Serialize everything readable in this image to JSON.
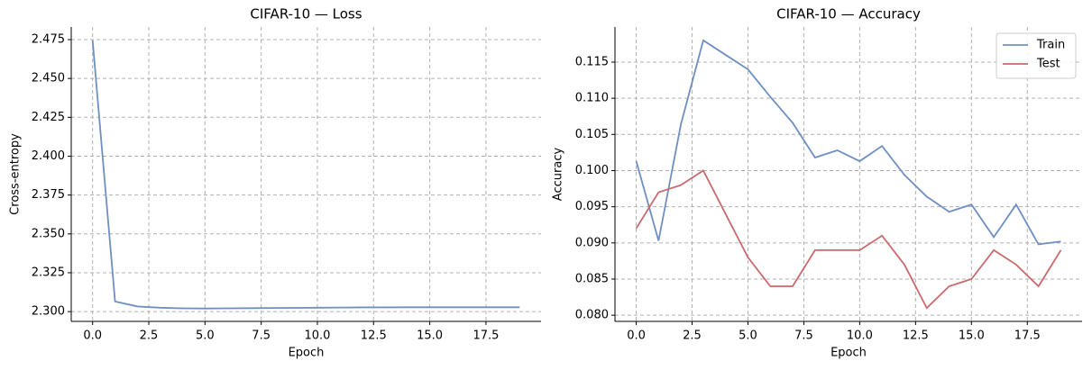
{
  "chart_data": [
    {
      "type": "line",
      "title": "CIFAR-10 — Loss",
      "x_label": "Epoch",
      "y_label": "Cross-entropy",
      "x": [
        0,
        1,
        2,
        3,
        4,
        5,
        6,
        7,
        8,
        9,
        10,
        11,
        12,
        13,
        14,
        15,
        16,
        17,
        18,
        19
      ],
      "values": [
        2.4745,
        2.3065,
        2.3033,
        2.3025,
        2.3021,
        2.302,
        2.3021,
        2.3022,
        2.3023,
        2.3024,
        2.3025,
        2.3026,
        2.3027,
        2.3027,
        2.3028,
        2.3028,
        2.3028,
        2.3028,
        2.3028,
        2.3028
      ],
      "color": "#6f8fc2",
      "xlim": [
        -0.95,
        19.95
      ],
      "xticks": [
        {
          "value": 0,
          "label": "0.0"
        },
        {
          "value": 2.5,
          "label": "2.5"
        },
        {
          "value": 5,
          "label": "5.0"
        },
        {
          "value": 7.5,
          "label": "7.5"
        },
        {
          "value": 10,
          "label": "10.0"
        },
        {
          "value": 12.5,
          "label": "12.5"
        },
        {
          "value": 15,
          "label": "15.0"
        },
        {
          "value": 17.5,
          "label": "17.5"
        }
      ],
      "ylim": [
        2.2937,
        2.4831
      ],
      "yticks": [
        {
          "value": 2.3,
          "label": "2.300"
        },
        {
          "value": 2.325,
          "label": "2.325"
        },
        {
          "value": 2.35,
          "label": "2.350"
        },
        {
          "value": 2.375,
          "label": "2.375"
        },
        {
          "value": 2.4,
          "label": "2.400"
        },
        {
          "value": 2.425,
          "label": "2.425"
        },
        {
          "value": 2.45,
          "label": "2.450"
        },
        {
          "value": 2.475,
          "label": "2.475"
        }
      ],
      "grid": true
    },
    {
      "type": "line",
      "title": "CIFAR-10 — Accuracy",
      "x_label": "Epoch",
      "y_label": "Accuracy",
      "x": [
        0,
        1,
        2,
        3,
        4,
        5,
        6,
        7,
        8,
        9,
        10,
        11,
        12,
        13,
        14,
        15,
        16,
        17,
        18,
        19
      ],
      "series": [
        {
          "name": "Train",
          "color": "#6f8fc2",
          "values": [
            0.1013,
            0.0903,
            0.1064,
            0.118,
            0.116,
            0.114,
            0.1102,
            0.1066,
            0.1018,
            0.1028,
            0.1013,
            0.1034,
            0.0994,
            0.0964,
            0.0943,
            0.0953,
            0.0908,
            0.0953,
            0.0898,
            0.0902
          ]
        },
        {
          "name": "Test",
          "color": "#c96a6c",
          "values": [
            0.092,
            0.097,
            0.098,
            0.1,
            0.094,
            0.088,
            0.084,
            0.084,
            0.089,
            0.089,
            0.089,
            0.091,
            0.087,
            0.081,
            0.084,
            0.085,
            0.089,
            0.087,
            0.084,
            0.089
          ]
        }
      ],
      "xlim": [
        -0.95,
        19.95
      ],
      "xticks": [
        {
          "value": 0,
          "label": "0.0"
        },
        {
          "value": 2.5,
          "label": "2.5"
        },
        {
          "value": 5,
          "label": "5.0"
        },
        {
          "value": 7.5,
          "label": "7.5"
        },
        {
          "value": 10,
          "label": "10.0"
        },
        {
          "value": 12.5,
          "label": "12.5"
        },
        {
          "value": 15,
          "label": "15.0"
        },
        {
          "value": 17.5,
          "label": "17.5"
        }
      ],
      "ylim": [
        0.07915,
        0.11985
      ],
      "yticks": [
        {
          "value": 0.08,
          "label": "0.080"
        },
        {
          "value": 0.085,
          "label": "0.085"
        },
        {
          "value": 0.09,
          "label": "0.090"
        },
        {
          "value": 0.095,
          "label": "0.095"
        },
        {
          "value": 0.1,
          "label": "0.100"
        },
        {
          "value": 0.105,
          "label": "0.105"
        },
        {
          "value": 0.11,
          "label": "0.110"
        },
        {
          "value": 0.115,
          "label": "0.115"
        }
      ],
      "grid": true,
      "legend": "upper-right"
    }
  ]
}
